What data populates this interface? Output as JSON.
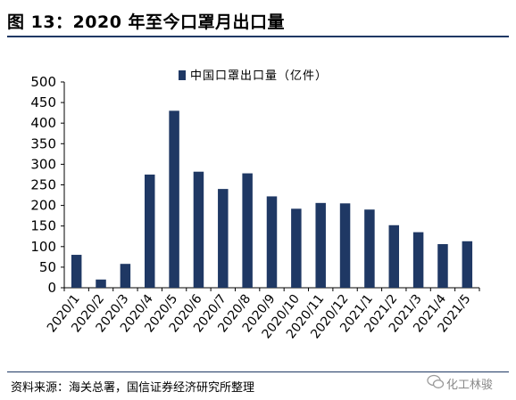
{
  "figure": {
    "title": "图 13：2020 年至今口罩月出口量",
    "source": "资料来源：海关总署，国信证券经济研究所整理",
    "watermark": "化工林骏"
  },
  "colors": {
    "bar": "#1f3864",
    "rule": "#1f3864",
    "axis": "#000000"
  },
  "chart_data": {
    "type": "bar",
    "categories": [
      "2020/1",
      "2020/2",
      "2020/3",
      "2020/4",
      "2020/5",
      "2020/6",
      "2020/7",
      "2020/8",
      "2020/9",
      "2020/10",
      "2020/11",
      "2020/12",
      "2021/1",
      "2021/2",
      "2021/3",
      "2021/4",
      "2021/5"
    ],
    "series": [
      {
        "name": "中国口罩出口量（亿件）",
        "values": [
          80,
          20,
          58,
          275,
          430,
          282,
          240,
          278,
          222,
          192,
          206,
          205,
          190,
          152,
          135,
          106,
          113
        ]
      }
    ],
    "title": "",
    "xlabel": "",
    "ylabel": "",
    "ylim": [
      0,
      500
    ],
    "yticks": [
      0,
      50,
      100,
      150,
      200,
      250,
      300,
      350,
      400,
      450,
      500
    ],
    "grid": false,
    "legend_position": "top-center"
  }
}
